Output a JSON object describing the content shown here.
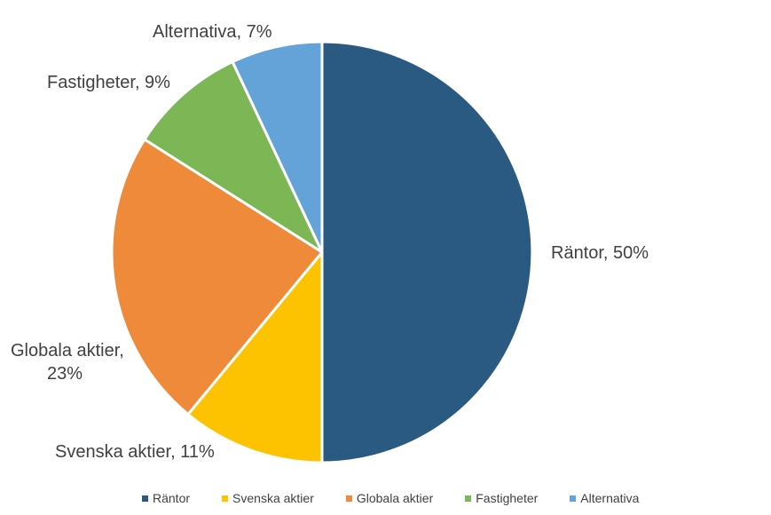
{
  "chart_data": {
    "type": "pie",
    "title": "",
    "slices": [
      {
        "name": "Räntor",
        "value": 50,
        "color": "#2a5a82",
        "label_text": "Räntor, 50%"
      },
      {
        "name": "Svenska aktier",
        "value": 11,
        "color": "#fdc300",
        "label_text": "Svenska aktier, 11%"
      },
      {
        "name": "Globala aktier",
        "value": 23,
        "color": "#ee8a3a",
        "label_text": "Globala aktier,|23%"
      },
      {
        "name": "Fastigheter",
        "value": 9,
        "color": "#7db655",
        "label_text": "Fastigheter, 9%"
      },
      {
        "name": "Alternativa",
        "value": 7,
        "color": "#64a3d8",
        "label_text": "Alternativa, 7%"
      }
    ],
    "start": "12 o'clock",
    "direction": "clockwise",
    "legend_position": "bottom"
  },
  "legend": {
    "items": [
      {
        "label": "Räntor",
        "color": "#2a5a82"
      },
      {
        "label": "Svenska aktier",
        "color": "#fdc300"
      },
      {
        "label": "Globala aktier",
        "color": "#ee8a3a"
      },
      {
        "label": "Fastigheter",
        "color": "#7db655"
      },
      {
        "label": "Alternativa",
        "color": "#64a3d8"
      }
    ]
  }
}
